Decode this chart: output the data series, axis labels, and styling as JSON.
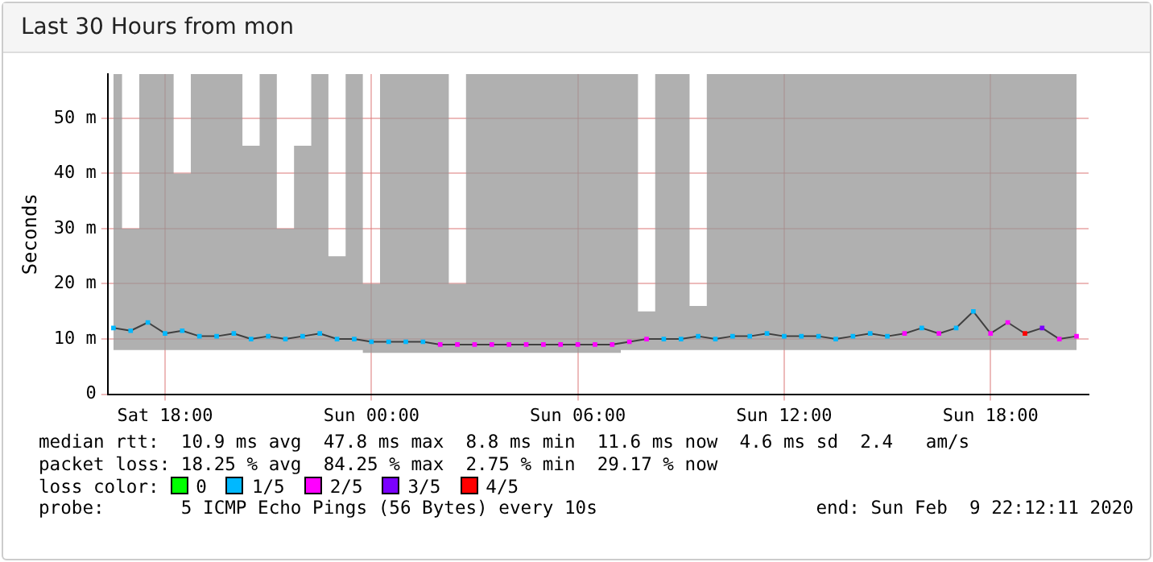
{
  "chart_data": {
    "type": "line",
    "title": "Last 30 Hours from mon",
    "ylabel": "Seconds",
    "legend_title": "loss color:",
    "legend": "bottom",
    "grid": true,
    "x": [
      "2020-02-08T16:30",
      "2020-02-08T17:00",
      "2020-02-08T17:30",
      "2020-02-08T18:00",
      "2020-02-08T18:30",
      "2020-02-08T19:00",
      "2020-02-08T19:30",
      "2020-02-08T20:00",
      "2020-02-08T20:30",
      "2020-02-08T21:00",
      "2020-02-08T21:30",
      "2020-02-08T22:00",
      "2020-02-08T22:30",
      "2020-02-08T23:00",
      "2020-02-08T23:30",
      "2020-02-09T00:00",
      "2020-02-09T00:30",
      "2020-02-09T01:00",
      "2020-02-09T01:30",
      "2020-02-09T02:00",
      "2020-02-09T02:30",
      "2020-02-09T03:00",
      "2020-02-09T03:30",
      "2020-02-09T04:00",
      "2020-02-09T04:30",
      "2020-02-09T05:00",
      "2020-02-09T05:30",
      "2020-02-09T06:00",
      "2020-02-09T06:30",
      "2020-02-09T07:00",
      "2020-02-09T07:30",
      "2020-02-09T08:00",
      "2020-02-09T08:30",
      "2020-02-09T09:00",
      "2020-02-09T09:30",
      "2020-02-09T10:00",
      "2020-02-09T10:30",
      "2020-02-09T11:00",
      "2020-02-09T11:30",
      "2020-02-09T12:00",
      "2020-02-09T12:30",
      "2020-02-09T13:00",
      "2020-02-09T13:30",
      "2020-02-09T14:00",
      "2020-02-09T14:30",
      "2020-02-09T15:00",
      "2020-02-09T15:30",
      "2020-02-09T16:00",
      "2020-02-09T16:30",
      "2020-02-09T17:00",
      "2020-02-09T17:30",
      "2020-02-09T18:00",
      "2020-02-09T18:30",
      "2020-02-09T19:00",
      "2020-02-09T19:30",
      "2020-02-09T20:00",
      "2020-02-09T20:30"
    ],
    "xlim": [
      "2020-02-08T16:20",
      "2020-02-09T20:51"
    ],
    "xticks": [
      {
        "value": "2020-02-08T18:00",
        "label": "Sat 18:00"
      },
      {
        "value": "2020-02-09T00:00",
        "label": "Sun 00:00"
      },
      {
        "value": "2020-02-09T06:00",
        "label": "Sun 06:00"
      },
      {
        "value": "2020-02-09T12:00",
        "label": "Sun 12:00"
      },
      {
        "value": "2020-02-09T18:00",
        "label": "Sun 18:00"
      }
    ],
    "ylim": [
      0,
      58
    ],
    "yticks": [
      0,
      {
        "value": 10,
        "label": "10 m"
      },
      {
        "value": 20,
        "label": "20 m"
      },
      {
        "value": 30,
        "label": "30 m"
      },
      {
        "value": 40,
        "label": "40 m"
      },
      {
        "value": 50,
        "label": "50 m"
      }
    ],
    "series": [
      {
        "color": "#404040",
        "values": [
          12,
          11.5,
          13,
          11,
          11.5,
          10.5,
          10.5,
          11,
          10,
          10.5,
          10,
          10.5,
          11,
          10,
          10,
          9.5,
          9.5,
          9.5,
          9.5,
          9,
          9,
          9,
          9,
          9,
          9,
          9,
          9,
          9,
          9,
          9,
          9.5,
          10,
          10,
          10,
          10.5,
          10,
          10.5,
          10.5,
          11,
          10.5,
          10.5,
          10.5,
          10,
          10.5,
          11,
          10.5,
          11,
          12,
          11,
          12,
          15,
          11,
          13,
          11,
          12,
          10,
          10.5
        ],
        "lower": [
          8,
          8,
          8,
          8,
          8,
          8,
          8,
          8,
          8,
          8,
          8,
          8,
          8,
          8,
          8,
          7.5,
          7.5,
          7.5,
          7.5,
          7.5,
          7.5,
          7.5,
          7.5,
          7.5,
          7.5,
          7.5,
          7.5,
          7.5,
          7.5,
          7.5,
          8,
          8,
          8,
          8,
          8,
          8,
          8,
          8,
          8,
          8,
          8,
          8,
          8,
          8,
          8,
          8,
          8,
          8,
          8,
          8,
          8,
          8,
          8,
          8,
          8,
          8,
          8
        ],
        "upper": [
          58,
          30,
          58,
          58,
          40,
          58,
          58,
          58,
          45,
          58,
          30,
          45,
          58,
          25,
          58,
          20,
          58,
          58,
          58,
          58,
          20,
          58,
          58,
          58,
          58,
          58,
          58,
          58,
          58,
          58,
          58,
          15,
          58,
          58,
          16,
          58,
          58,
          58,
          58,
          58,
          58,
          58,
          58,
          58,
          58,
          58,
          58,
          58,
          58,
          58,
          58,
          58,
          58,
          58,
          58,
          58,
          58
        ]
      },
      {
        "type": "scatter",
        "name": "0",
        "color": "#00ff00",
        "values": [
          null,
          null,
          null,
          null,
          null,
          null,
          null,
          null,
          null,
          null,
          null,
          null,
          null,
          null,
          null,
          null,
          null,
          null,
          null,
          null,
          null,
          null,
          null,
          null,
          null,
          null,
          null,
          null,
          null,
          null,
          null,
          null,
          null,
          null,
          null,
          null,
          null,
          null,
          null,
          null,
          null,
          null,
          null,
          null,
          null,
          null,
          null,
          null,
          null,
          null,
          null,
          null,
          null,
          null,
          null,
          null,
          null
        ]
      },
      {
        "type": "scatter",
        "name": "1/5",
        "color": "#00b8ff",
        "x": [
          "2020-02-08T16:30",
          "2020-02-08T17:00",
          "2020-02-08T17:30",
          "2020-02-08T18:00",
          "2020-02-08T18:30",
          "2020-02-08T19:00",
          "2020-02-08T19:30",
          "2020-02-08T20:00",
          "2020-02-08T20:30",
          "2020-02-08T21:00",
          "2020-02-08T21:30",
          "2020-02-08T22:00",
          "2020-02-08T22:30",
          "2020-02-08T23:00",
          "2020-02-08T23:30",
          "2020-02-09T00:00",
          "2020-02-09T00:30",
          "2020-02-09T01:00",
          "2020-02-09T01:30",
          "2020-02-09T08:30",
          "2020-02-09T09:00",
          "2020-02-09T09:30",
          "2020-02-09T10:00",
          "2020-02-09T10:30",
          "2020-02-09T11:00",
          "2020-02-09T11:30",
          "2020-02-09T12:00",
          "2020-02-09T12:30",
          "2020-02-09T13:00",
          "2020-02-09T13:30",
          "2020-02-09T14:00",
          "2020-02-09T14:30",
          "2020-02-09T15:00",
          "2020-02-09T16:00",
          "2020-02-09T17:00",
          "2020-02-09T17:30"
        ],
        "values": [
          12,
          11.5,
          13,
          11,
          11.5,
          10.5,
          10.5,
          11,
          10,
          10.5,
          10,
          10.5,
          11,
          10,
          10,
          9.5,
          9.5,
          9.5,
          9.5,
          10,
          10,
          10.5,
          10,
          10.5,
          10.5,
          11,
          10.5,
          10.5,
          10.5,
          10,
          10.5,
          11,
          10.5,
          12,
          12,
          15
        ]
      },
      {
        "type": "scatter",
        "name": "2/5",
        "color": "#ff00ff",
        "x": [
          "2020-02-09T02:00",
          "2020-02-09T02:30",
          "2020-02-09T03:00",
          "2020-02-09T03:30",
          "2020-02-09T04:00",
          "2020-02-09T04:30",
          "2020-02-09T05:00",
          "2020-02-09T05:30",
          "2020-02-09T06:00",
          "2020-02-09T06:30",
          "2020-02-09T07:00",
          "2020-02-09T07:30",
          "2020-02-09T08:00",
          "2020-02-09T15:30",
          "2020-02-09T16:30",
          "2020-02-09T18:00",
          "2020-02-09T18:30",
          "2020-02-09T20:00",
          "2020-02-09T20:30"
        ],
        "values": [
          9,
          9,
          9,
          9,
          9,
          9,
          9,
          9,
          9,
          9,
          9,
          9.5,
          10,
          11,
          11,
          11,
          13,
          10,
          10.5
        ]
      },
      {
        "type": "scatter",
        "name": "3/5",
        "color": "#7b00ff",
        "x": [
          "2020-02-09T19:30"
        ],
        "values": [
          12
        ]
      },
      {
        "type": "scatter",
        "name": "4/5",
        "color": "#ff0000",
        "x": [
          "2020-02-09T19:00"
        ],
        "values": [
          11
        ]
      }
    ],
    "annotations": [
      "median rtt:  10.9 ms avg  47.8 ms max  8.8 ms min  11.6 ms now  4.6 ms sd  2.4   am/s",
      "packet loss: 18.25 % avg  84.25 % max  2.75 % min  29.17 % now",
      "probe:       5 ICMP Echo Pings (56 Bytes) every 10s",
      "end: Sun Feb  9 22:12:11 2020"
    ]
  }
}
